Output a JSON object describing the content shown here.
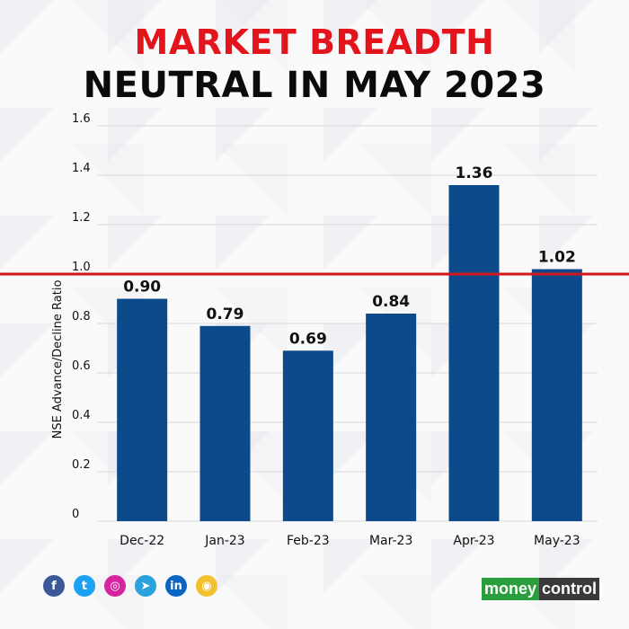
{
  "title_line1": "MARKET BREADTH",
  "title_line2": "NEUTRAL IN MAY 2023",
  "colors": {
    "bar": "#0d4a8c",
    "reference_line": "#d4161d",
    "title_accent": "#e3141b"
  },
  "chart_data": {
    "type": "bar",
    "categories": [
      "Dec-22",
      "Jan-23",
      "Feb-23",
      "Mar-23",
      "Apr-23",
      "May-23"
    ],
    "values": [
      0.9,
      0.79,
      0.69,
      0.84,
      1.36,
      1.02
    ],
    "data_labels": [
      "0.90",
      "0.79",
      "0.69",
      "0.84",
      "1.36",
      "1.02"
    ],
    "ylabel": "NSE Advance/Decline Ratio",
    "xlabel": "",
    "ylim": [
      0,
      1.6
    ],
    "yticks": [
      0,
      0.2,
      0.4,
      0.6,
      0.8,
      1.0,
      1.2,
      1.4,
      1.6
    ],
    "ytick_labels": [
      "0",
      "0.2",
      "0.4",
      "0.6",
      "0.8",
      "1.0",
      "1.2",
      "1.4",
      "1.6"
    ],
    "reference_line": 1.0,
    "grid": true
  },
  "footer": {
    "social_icons": [
      {
        "name": "facebook-icon",
        "glyph": "f",
        "color": "#3b5998"
      },
      {
        "name": "twitter-icon",
        "glyph": "t",
        "color": "#1da1f2"
      },
      {
        "name": "instagram-icon",
        "glyph": "◎",
        "color": "#d6249f"
      },
      {
        "name": "telegram-icon",
        "glyph": "➤",
        "color": "#2aa3dc"
      },
      {
        "name": "linkedin-icon",
        "glyph": "in",
        "color": "#0a66c2"
      },
      {
        "name": "koo-icon",
        "glyph": "◉",
        "color": "#f2c12e"
      }
    ],
    "brand_part1": "money",
    "brand_part2": "control"
  }
}
